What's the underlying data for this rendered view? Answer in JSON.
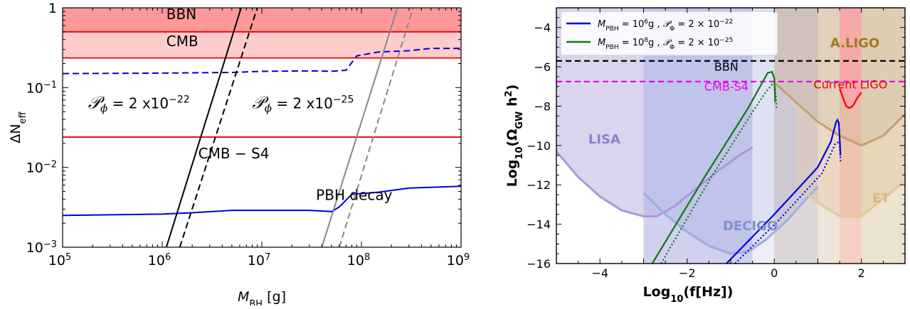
{
  "chart_data": [
    {
      "type": "line",
      "x_scale": "log",
      "y_scale": "log",
      "xlim": [
        100000,
        1000000000
      ],
      "ylim": [
        0.001,
        1
      ],
      "xlabel": "M",
      "xlabel_sub": "BH",
      "xlabel_unit": " [g]",
      "ylabel": "ΔN",
      "ylabel_sub": "eff",
      "x_ticks": [
        {
          "v": 100000,
          "b": "10",
          "e": "5"
        },
        {
          "v": 1000000,
          "b": "10",
          "e": "6"
        },
        {
          "v": 10000000,
          "b": "10",
          "e": "7"
        },
        {
          "v": 100000000,
          "b": "10",
          "e": "8"
        },
        {
          "v": 1000000000,
          "b": "10",
          "e": "9"
        }
      ],
      "y_ticks": [
        {
          "v": 0.001,
          "b": "10",
          "e": "−3"
        },
        {
          "v": 0.01,
          "b": "10",
          "e": "−2"
        },
        {
          "v": 0.1,
          "b": "10",
          "e": "−1"
        },
        {
          "v": 1,
          "b": "1",
          "e": ""
        }
      ],
      "shaded_regions": [
        {
          "name": "BBN",
          "ymin": 0.5,
          "ymax": 1,
          "color": "#ff9999"
        },
        {
          "name": "CMB",
          "ymin": 0.235,
          "ymax": 0.5,
          "color": "#ffcccc"
        }
      ],
      "hlines": [
        {
          "y": 0.5,
          "color": "#ee0000"
        },
        {
          "y": 0.235,
          "color": "#ee0000"
        },
        {
          "y": 0.024,
          "color": "#ee0000"
        }
      ],
      "series": [
        {
          "label": "PBH decay",
          "color": "#0000dd",
          "style": "solid",
          "points": [
            [
              100000,
              0.0025
            ],
            [
              1000000,
              0.0026
            ],
            [
              2000000,
              0.0027
            ],
            [
              5000000,
              0.0029
            ],
            [
              10000000,
              0.0029
            ],
            [
              30000000,
              0.0029
            ],
            [
              50000000,
              0.0028
            ],
            [
              60000000,
              0.0032
            ],
            [
              80000000,
              0.0046
            ],
            [
              150000000,
              0.0049
            ],
            [
              300000000,
              0.0055
            ],
            [
              1000000000,
              0.0058
            ]
          ]
        },
        {
          "label": "",
          "color": "#0000dd",
          "style": "dashed",
          "points": [
            [
              100000,
              0.15
            ],
            [
              1000000,
              0.152
            ],
            [
              5000000,
              0.155
            ],
            [
              10000000,
              0.16
            ],
            [
              30000000,
              0.162
            ],
            [
              50000000,
              0.16
            ],
            [
              70000000,
              0.165
            ],
            [
              90000000,
              0.25
            ],
            [
              150000000,
              0.28
            ],
            [
              300000000,
              0.29
            ],
            [
              500000000,
              0.31
            ],
            [
              1000000000,
              0.31
            ]
          ]
        },
        {
          "label": "",
          "color": "#000000",
          "style": "solid",
          "points": [
            [
              1100000,
              0.001
            ],
            [
              6200000,
              1
            ]
          ]
        },
        {
          "label": "",
          "color": "#000000",
          "style": "dashed",
          "points": [
            [
              1500000,
              0.001
            ],
            [
              9000000,
              1
            ]
          ]
        },
        {
          "label": "",
          "color": "#888888",
          "style": "solid",
          "points": [
            [
              40000000,
              0.001
            ],
            [
              230000000,
              1
            ]
          ]
        },
        {
          "label": "",
          "color": "#888888",
          "style": "dashed",
          "points": [
            [
              60000000,
              0.001
            ],
            [
              330000000,
              1
            ]
          ]
        }
      ],
      "annotations": [
        {
          "text": "BBN",
          "x": 1100000,
          "y": 0.72
        },
        {
          "text": "CMB",
          "x": 1100000,
          "y": 0.33
        },
        {
          "text": "CMB − S4",
          "x": 2300000,
          "y": 0.013
        },
        {
          "text": "PBH decay",
          "x": 35000000,
          "y": 0.0039
        },
        {
          "text": "𝒫",
          "sub": "ϕ",
          "rest": " = 2 x10",
          "exp": "−22",
          "x": 180000,
          "y": 0.055
        },
        {
          "text": "𝒫",
          "sub": "ϕ",
          "rest": " = 2 x10",
          "exp": "−25",
          "x": 8000000,
          "y": 0.055
        }
      ]
    },
    {
      "type": "line",
      "xlim": [
        -5,
        3
      ],
      "ylim": [
        -16,
        -3
      ],
      "xlabel": "Log",
      "xlabel_sub": "10",
      "xlabel_rest": "(f[Hz])",
      "ylabel": "Log",
      "ylabel_sub": "10",
      "ylabel_rest": "(Ω",
      "ylabel_sub2": "GW",
      "ylabel_rest2": " h",
      "ylabel_sup": "2",
      "ylabel_end": ")",
      "x_ticks": [
        {
          "v": -4,
          "t": "−4"
        },
        {
          "v": -2,
          "t": "−2"
        },
        {
          "v": 0,
          "t": "0"
        },
        {
          "v": 2,
          "t": "2"
        }
      ],
      "y_ticks": [
        {
          "v": -4,
          "t": "−4"
        },
        {
          "v": -6,
          "t": "−6"
        },
        {
          "v": -8,
          "t": "−8"
        },
        {
          "v": -10,
          "t": "−10"
        },
        {
          "v": -12,
          "t": "−12"
        },
        {
          "v": -14,
          "t": "−14"
        },
        {
          "v": -16,
          "t": "−16"
        }
      ],
      "legend": [
        {
          "color": "#0000dd",
          "pre": "M",
          "pre_sub": "PBH",
          "mid": " = 10",
          "mid_sup": "6",
          "mid2": "g , ",
          "p": "𝒫",
          "p_sub": "Φ",
          "post": " = 2 × 10",
          "post_sup": "−22"
        },
        {
          "color": "#117711",
          "pre": "M",
          "pre_sub": "PBH",
          "mid": " = 10",
          "mid_sup": "8",
          "mid2": "g , ",
          "p": "𝒫",
          "p_sub": "Φ",
          "post": " = 2 × 10",
          "post_sup": "−25"
        }
      ],
      "vbands": [
        {
          "x0": -3.0,
          "x1": -0.5,
          "color": "#b7b7e6"
        },
        {
          "x0": -0.5,
          "x1": 0.0,
          "color": "#e5e5f3"
        },
        {
          "x0": 0.0,
          "x1": 1.0,
          "color": "#c9c0c4"
        },
        {
          "x0": 1.0,
          "x1": 1.5,
          "color": "#e7d6c4"
        },
        {
          "x0": 1.5,
          "x1": 2.0,
          "color": "#f0b6a4"
        },
        {
          "x0": 2.0,
          "x1": 3.0,
          "color": "#e2d2b7"
        }
      ],
      "hlines": [
        {
          "name": "BBN",
          "y": -5.7,
          "color": "#000000"
        },
        {
          "name": "CMB-S4",
          "y": -6.75,
          "color": "#ee00ee"
        }
      ],
      "sensitivity_curves": [
        {
          "name": "LISA",
          "color": "#a89ad6",
          "fill": "#dad5ef",
          "points": [
            [
              -5,
              -10.3
            ],
            [
              -4.5,
              -11.6
            ],
            [
              -4,
              -12.6
            ],
            [
              -3.5,
              -13.3
            ],
            [
              -3.0,
              -13.6
            ],
            [
              -2.7,
              -13.6
            ],
            [
              -2.3,
              -13.1
            ],
            [
              -1.8,
              -12.2
            ],
            [
              -1.3,
              -11.3
            ],
            [
              -0.8,
              -10.5
            ],
            [
              -0.5,
              -10.1
            ]
          ]
        },
        {
          "name": "DECIGO",
          "color": "#9aaee0",
          "fill": "#d1daf0",
          "points": [
            [
              -3,
              -12.4
            ],
            [
              -2.5,
              -13.5
            ],
            [
              -2,
              -14.4
            ],
            [
              -1.5,
              -15.1
            ],
            [
              -1,
              -15.5
            ],
            [
              -0.6,
              -15.4
            ],
            [
              -0.2,
              -14.8
            ],
            [
              0.3,
              -13.8
            ],
            [
              0.7,
              -12.8
            ],
            [
              1,
              -12.1
            ]
          ]
        },
        {
          "name": "ET",
          "color": "#e3c89e",
          "fill": "#efdcc0",
          "points": [
            [
              0.5,
              -12
            ],
            [
              1,
              -12.9
            ],
            [
              1.5,
              -13.6
            ],
            [
              2,
              -13.6
            ],
            [
              2.5,
              -12.7
            ],
            [
              3,
              -11.8
            ]
          ]
        },
        {
          "name": "A.LIGO",
          "color": "#c4a06c",
          "fill": "#d8c7a6",
          "points": [
            [
              0,
              -6.8
            ],
            [
              0.5,
              -7.8
            ],
            [
              1,
              -8.8
            ],
            [
              1.5,
              -9.5
            ],
            [
              2,
              -10
            ],
            [
              2.5,
              -9.5
            ],
            [
              3,
              -8.4
            ]
          ]
        }
      ],
      "current_ligo": {
        "name": "Current LIGO",
        "color": "#ee0000",
        "fill": "#f7a9a9",
        "points": [
          [
            1.5,
            -7.1
          ],
          [
            1.58,
            -7.6
          ],
          [
            1.65,
            -8.0
          ],
          [
            1.72,
            -8.1
          ],
          [
            1.8,
            -8.0
          ],
          [
            1.9,
            -7.6
          ],
          [
            2.0,
            -7.3
          ]
        ]
      },
      "series": [
        {
          "label": "legend-1",
          "color": "#0000dd",
          "style": "solid",
          "points": [
            [
              -1.1,
              -16
            ],
            [
              0.0,
              -13.5
            ],
            [
              1.0,
              -11.1
            ],
            [
              1.3,
              -9.8
            ],
            [
              1.42,
              -8.8
            ],
            [
              1.45,
              -8.7
            ],
            [
              1.48,
              -8.85
            ],
            [
              1.5,
              -9.6
            ],
            [
              1.52,
              -10.5
            ]
          ]
        },
        {
          "label": "legend-1",
          "color": "#0000dd",
          "style": "dotted",
          "points": [
            [
              -0.9,
              -16
            ],
            [
              0.1,
              -13.8
            ],
            [
              1.1,
              -11.4
            ],
            [
              1.4,
              -9.9
            ],
            [
              1.5,
              -9.8
            ],
            [
              1.52,
              -10.8
            ]
          ]
        },
        {
          "label": "legend-2",
          "color": "#117711",
          "style": "solid",
          "points": [
            [
              -2.8,
              -16
            ],
            [
              -1.6,
              -11.6
            ],
            [
              -0.6,
              -8.1
            ],
            [
              -0.3,
              -6.9
            ],
            [
              -0.15,
              -6.3
            ],
            [
              -0.05,
              -6.25
            ],
            [
              0.0,
              -6.6
            ],
            [
              0.02,
              -7.8
            ]
          ]
        },
        {
          "label": "legend-2",
          "color": "#117711",
          "style": "dotted",
          "points": [
            [
              -2.6,
              -16
            ],
            [
              -1.5,
              -11.8
            ],
            [
              -0.5,
              -8.3
            ],
            [
              -0.2,
              -7.3
            ],
            [
              -0.05,
              -6.9
            ],
            [
              0.02,
              -7.0
            ],
            [
              0.05,
              -8.1
            ]
          ]
        }
      ],
      "annotations": [
        {
          "text": "A.LIGO",
          "x": 1.85,
          "y": -5.0,
          "color": "#a07820",
          "bold": true
        },
        {
          "text": "BBN",
          "x": -1.1,
          "y": -6.2,
          "color": "#000000",
          "bold": false
        },
        {
          "text": "Current LIGO",
          "x": 1.75,
          "y": -7.1,
          "color": "#ee0000",
          "bold": false
        },
        {
          "text": "CMB-S4",
          "x": -1.1,
          "y": -7.2,
          "color": "#ee00ee",
          "bold": false
        },
        {
          "text": "LISA",
          "x": -3.9,
          "y": -9.9,
          "color": "#8f80cc",
          "bold": true
        },
        {
          "text": "DECIGO",
          "x": -0.55,
          "y": -14.3,
          "color": "#7e90cc",
          "bold": true
        },
        {
          "text": "ET",
          "x": 2.45,
          "y": -12.9,
          "color": "#d9b784",
          "bold": true
        }
      ]
    }
  ]
}
